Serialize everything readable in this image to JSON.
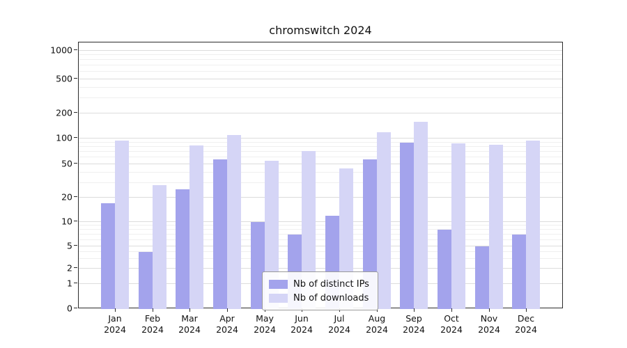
{
  "colors": {
    "distinct_ips": "#a3a3ec",
    "downloads": "#d5d5f6",
    "grid_major": "#dcdcdc",
    "grid_minor": "#efefef",
    "axis": "#2b2b2b",
    "text": "#111111"
  },
  "chart_data": {
    "type": "bar",
    "title": "chromswitch 2024",
    "months": [
      "Jan",
      "Feb",
      "Mar",
      "Apr",
      "May",
      "Jun",
      "Jul",
      "Aug",
      "Sep",
      "Oct",
      "Nov",
      "Dec"
    ],
    "year_label": "2024",
    "categories": [
      "Jan 2024",
      "Feb 2024",
      "Mar 2024",
      "Apr 2024",
      "May 2024",
      "Jun 2024",
      "Jul 2024",
      "Aug 2024",
      "Sep 2024",
      "Oct 2024",
      "Nov 2024",
      "Dec 2024"
    ],
    "series": [
      {
        "name": "Nb of distinct IPs",
        "color_key": "distinct_ips",
        "values": [
          17,
          4,
          25,
          57,
          10,
          7,
          12,
          57,
          90,
          8,
          5,
          7
        ]
      },
      {
        "name": "Nb of downloads",
        "color_key": "downloads",
        "values": [
          95,
          28,
          83,
          110,
          55,
          72,
          45,
          120,
          160,
          88,
          85,
          95
        ]
      }
    ],
    "y_ticks": [
      0,
      1,
      2,
      5,
      10,
      20,
      50,
      100,
      200,
      500,
      1000
    ],
    "y_scale": "symlog",
    "ylim": [
      0,
      1000
    ],
    "grid": "horizontal",
    "legend_position": "lower center",
    "xlabel": "",
    "ylabel": ""
  }
}
